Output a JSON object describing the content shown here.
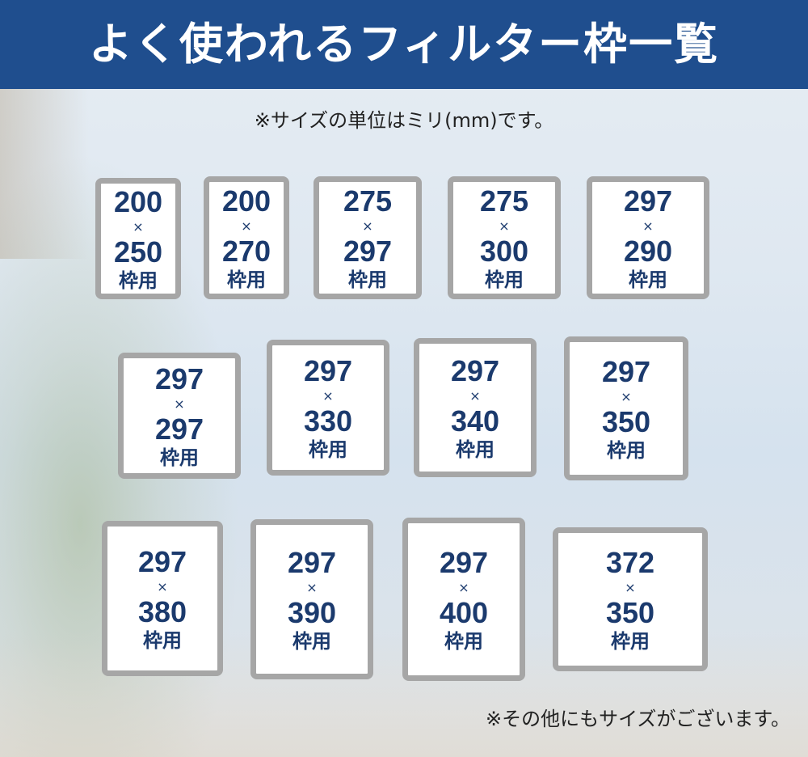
{
  "header": {
    "title": "よく使われるフィルター枠一覧"
  },
  "notes": {
    "unit": "※サイズの単位はミリ(mm)です。",
    "other": "※その他にもサイズがございます。"
  },
  "labels": {
    "times": "×",
    "suffix": "枠用"
  },
  "colors": {
    "header": "#1f4e8e",
    "text": "#1b3a6d",
    "border": "#a6a6a6"
  },
  "sizes": [
    {
      "w": "200",
      "h": "250"
    },
    {
      "w": "200",
      "h": "270"
    },
    {
      "w": "275",
      "h": "297"
    },
    {
      "w": "275",
      "h": "300"
    },
    {
      "w": "297",
      "h": "290"
    },
    {
      "w": "297",
      "h": "297"
    },
    {
      "w": "297",
      "h": "330"
    },
    {
      "w": "297",
      "h": "340"
    },
    {
      "w": "297",
      "h": "350"
    },
    {
      "w": "297",
      "h": "380"
    },
    {
      "w": "297",
      "h": "390"
    },
    {
      "w": "297",
      "h": "400"
    },
    {
      "w": "372",
      "h": "350"
    }
  ]
}
